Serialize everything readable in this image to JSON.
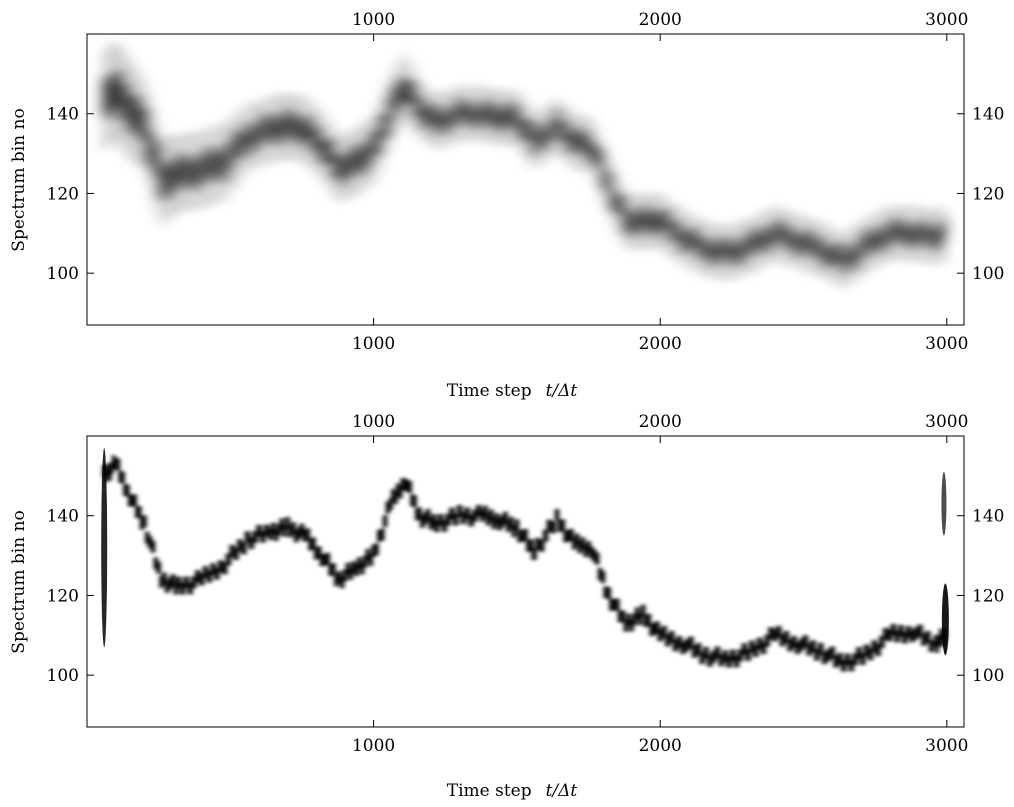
{
  "chart_data": [
    {
      "type": "heatmap",
      "name": "top",
      "xlabel": "Time step",
      "xlabel_var": "t/Δt",
      "ylabel": "Spectrum bin no",
      "xlim": [
        0,
        3060
      ],
      "ylim": [
        87,
        160
      ],
      "xticks": [
        1000,
        2000,
        3000
      ],
      "yticks": [
        100,
        120,
        140
      ],
      "xtick_labels": [
        "1000",
        "2000",
        "3000"
      ],
      "ytick_labels": [
        "100",
        "120",
        "140"
      ],
      "colormap": "gray-inverted",
      "ridge": {
        "t": [
          60,
          100,
          150,
          200,
          260,
          320,
          400,
          480,
          560,
          640,
          700,
          760,
          820,
          880,
          940,
          1000,
          1060,
          1110,
          1160,
          1220,
          1300,
          1380,
          1440,
          1500,
          1560,
          1640,
          1700,
          1760,
          1820,
          1880,
          1940,
          2000,
          2080,
          2160,
          2240,
          2320,
          2400,
          2480,
          2560,
          2640,
          2720,
          2800,
          2880,
          2960,
          3000
        ],
        "bin": [
          143,
          146,
          141,
          137,
          123,
          125,
          126,
          128,
          134,
          136,
          137,
          136,
          132,
          126,
          128,
          131,
          141,
          147,
          141,
          138,
          140,
          140,
          139,
          139,
          133,
          137,
          133,
          132,
          122,
          113,
          113,
          113,
          109,
          106,
          105,
          107,
          110,
          108,
          106,
          103,
          107,
          110,
          110,
          109,
          110
        ]
      },
      "width_bins": [
        9,
        9,
        9,
        8,
        8,
        7,
        7,
        7,
        6,
        6,
        6,
        6,
        6,
        6,
        6,
        6,
        6,
        6,
        5,
        5,
        5,
        5,
        5,
        5,
        5,
        5,
        5,
        5,
        5,
        5,
        5,
        5,
        5,
        5,
        5,
        5,
        5,
        5,
        5,
        5,
        5,
        5,
        5,
        5,
        5
      ],
      "spread": "wide",
      "edge_artifacts": false
    },
    {
      "type": "heatmap",
      "name": "bottom",
      "xlabel": "Time step",
      "xlabel_var": "t/Δt",
      "ylabel": "Spectrum bin no",
      "xlim": [
        0,
        3060
      ],
      "ylim": [
        87,
        160
      ],
      "xticks": [
        1000,
        2000,
        3000
      ],
      "yticks": [
        100,
        120,
        140
      ],
      "xtick_labels": [
        "1000",
        "2000",
        "3000"
      ],
      "ytick_labels": [
        "100",
        "120",
        "140"
      ],
      "colormap": "gray-inverted",
      "ridge": {
        "t": [
          60,
          100,
          150,
          200,
          260,
          320,
          400,
          480,
          560,
          640,
          700,
          760,
          820,
          880,
          940,
          1000,
          1060,
          1110,
          1160,
          1220,
          1300,
          1380,
          1440,
          1500,
          1560,
          1640,
          1700,
          1760,
          1820,
          1880,
          1940,
          2000,
          2080,
          2160,
          2240,
          2320,
          2400,
          2480,
          2560,
          2640,
          2720,
          2800,
          2880,
          2960,
          3000
        ],
        "bin": [
          150,
          153,
          145,
          138,
          124,
          122,
          124,
          128,
          134,
          136,
          137,
          135,
          130,
          124,
          127,
          130,
          143,
          149,
          140,
          138,
          140,
          140,
          139,
          137,
          131,
          139,
          133,
          132,
          120,
          113,
          115,
          110,
          108,
          105,
          104,
          106,
          110,
          108,
          106,
          103,
          105,
          110,
          111,
          108,
          110
        ]
      },
      "width_bins": [
        3,
        3,
        3,
        3,
        3,
        3,
        3,
        3,
        3,
        3,
        3,
        3,
        3,
        3,
        3,
        3,
        3,
        3,
        3,
        3,
        3,
        3,
        3,
        3,
        3,
        3,
        3,
        3,
        3,
        3,
        3,
        3,
        3,
        3,
        3,
        3,
        3,
        3,
        3,
        3,
        3,
        3,
        3,
        3,
        3
      ],
      "spread": "narrow",
      "edge_artifacts": true
    }
  ]
}
